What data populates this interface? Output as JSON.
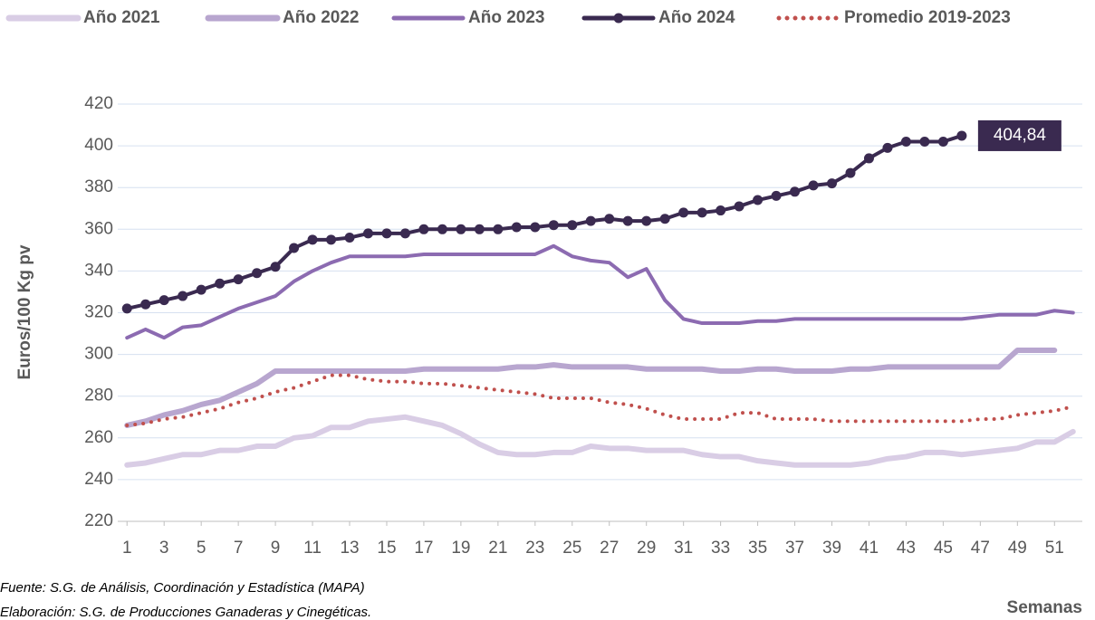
{
  "chart_data": {
    "type": "line",
    "y_label": "Euros/100 Kg pv",
    "x_label": "Semanas",
    "notes": [
      "Fuente: S.G. de Análisis, Coordinación y Estadística (MAPA)",
      "Elaboración: S.G. de Producciones Ganaderas y Cinegéticas."
    ],
    "x": [
      1,
      2,
      3,
      4,
      5,
      6,
      7,
      8,
      9,
      10,
      11,
      12,
      13,
      14,
      15,
      16,
      17,
      18,
      19,
      20,
      21,
      22,
      23,
      24,
      25,
      26,
      27,
      28,
      29,
      30,
      31,
      32,
      33,
      34,
      35,
      36,
      37,
      38,
      39,
      40,
      41,
      42,
      43,
      44,
      45,
      46,
      47,
      48,
      49,
      50,
      51,
      52
    ],
    "xlim": [
      0.5,
      52.5
    ],
    "xticks": [
      1,
      3,
      5,
      7,
      9,
      11,
      13,
      15,
      17,
      19,
      21,
      23,
      25,
      27,
      29,
      31,
      33,
      35,
      37,
      39,
      41,
      43,
      45,
      47,
      49,
      51
    ],
    "ylim": [
      220,
      420
    ],
    "yticks": [
      220,
      240,
      260,
      280,
      300,
      320,
      340,
      360,
      380,
      400,
      420
    ],
    "grid": true,
    "legend": "top",
    "series": [
      {
        "name": "Año 2021",
        "color": "#d9cde5",
        "line_width": 6,
        "values": [
          247,
          248,
          250,
          252,
          252,
          254,
          254,
          256,
          256,
          260,
          261,
          265,
          265,
          268,
          269,
          270,
          268,
          266,
          262,
          257,
          253,
          252,
          252,
          253,
          253,
          256,
          255,
          255,
          254,
          254,
          254,
          252,
          251,
          251,
          249,
          248,
          247,
          247,
          247,
          247,
          248,
          250,
          251,
          253,
          253,
          252,
          253,
          254,
          255,
          258,
          258,
          263
        ]
      },
      {
        "name": "Año 2022",
        "color": "#b8a6cf",
        "line_width": 6,
        "values": [
          266,
          268,
          271,
          273,
          276,
          278,
          282,
          286,
          292,
          292,
          292,
          292,
          292,
          292,
          292,
          292,
          293,
          293,
          293,
          293,
          293,
          294,
          294,
          295,
          294,
          294,
          294,
          294,
          293,
          293,
          293,
          293,
          292,
          292,
          293,
          293,
          292,
          292,
          292,
          293,
          293,
          294,
          294,
          294,
          294,
          294,
          294,
          294,
          302,
          302,
          302,
          null
        ]
      },
      {
        "name": "Año 2023",
        "color": "#8c6bb1",
        "line_width": 4,
        "values": [
          308,
          312,
          308,
          313,
          314,
          318,
          322,
          325,
          328,
          335,
          340,
          344,
          347,
          347,
          347,
          347,
          348,
          348,
          348,
          348,
          348,
          348,
          348,
          352,
          347,
          345,
          344,
          337,
          341,
          326,
          317,
          315,
          315,
          315,
          316,
          316,
          317,
          317,
          317,
          317,
          317,
          317,
          317,
          317,
          317,
          317,
          318,
          319,
          319,
          319,
          321,
          320
        ]
      },
      {
        "name": "Año 2024",
        "color": "#3a2a50",
        "line_width": 4,
        "markers": true,
        "values": [
          322,
          324,
          326,
          328,
          331,
          334,
          336,
          339,
          342,
          351,
          355,
          355,
          356,
          358,
          358,
          358,
          360,
          360,
          360,
          360,
          360,
          361,
          361,
          362,
          362,
          364,
          365,
          364,
          364,
          365,
          368,
          368,
          369,
          371,
          374,
          376,
          378,
          381,
          382,
          387,
          394,
          399,
          402,
          402,
          402,
          404.84,
          null,
          null,
          null,
          null,
          null,
          null
        ],
        "value_labels": [
          null,
          null,
          null,
          null,
          null,
          null,
          null,
          null,
          null,
          null,
          null,
          null,
          null,
          null,
          null,
          null,
          null,
          null,
          null,
          null,
          null,
          null,
          null,
          null,
          null,
          null,
          null,
          null,
          null,
          null,
          null,
          null,
          null,
          null,
          null,
          null,
          null,
          null,
          null,
          null,
          null,
          null,
          null,
          null,
          null,
          "404,84",
          null,
          null,
          null,
          null,
          null,
          null
        ]
      },
      {
        "name": "Promedio 2019-2023",
        "color": "#c0504d",
        "line_width": 4,
        "dash": "dotted",
        "values": [
          266,
          267,
          269,
          270,
          272,
          274,
          277,
          279,
          282,
          284,
          287,
          290,
          290,
          288,
          287,
          287,
          286,
          286,
          285,
          284,
          283,
          282,
          281,
          279,
          279,
          279,
          277,
          276,
          274,
          271,
          269,
          269,
          269,
          272,
          272,
          269,
          269,
          269,
          268,
          268,
          268,
          268,
          268,
          268,
          268,
          268,
          269,
          269,
          271,
          272,
          273,
          275
        ]
      }
    ]
  }
}
